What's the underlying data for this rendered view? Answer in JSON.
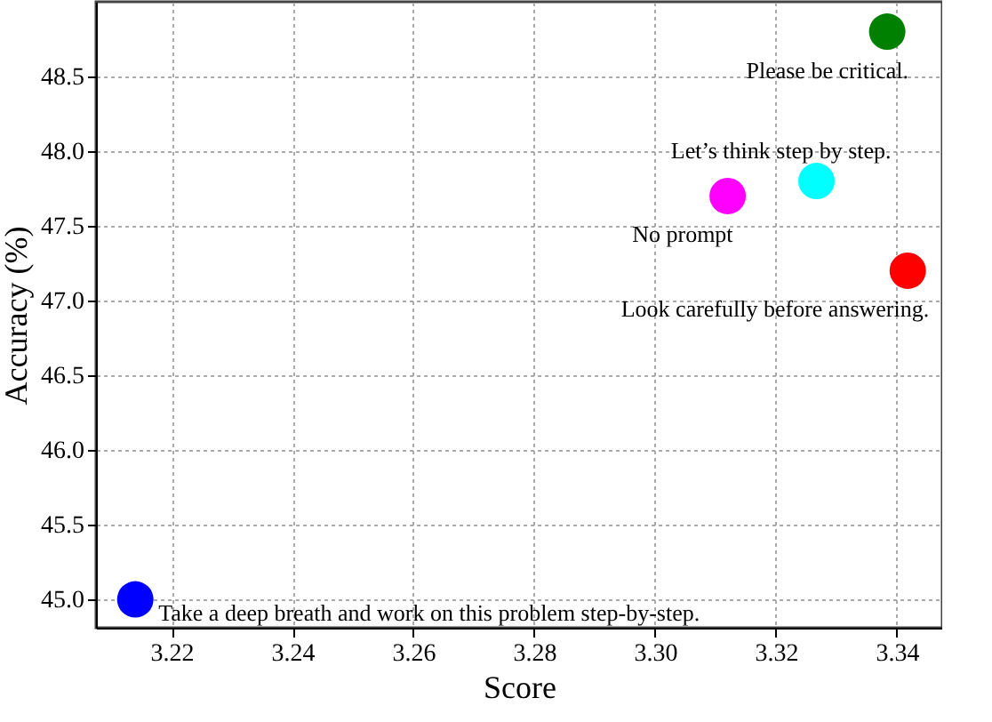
{
  "chart_data": {
    "type": "scatter",
    "xlabel": "Score",
    "ylabel": "Accuracy (%)",
    "xlim": [
      3.2075,
      3.3475
    ],
    "xticks": [
      3.22,
      3.24,
      3.26,
      3.28,
      {
        "value": 3.3,
        "label": "3.30"
      },
      3.32,
      3.34
    ],
    "ylim": [
      44.81,
      49.0
    ],
    "yticks": [
      {
        "value": 45,
        "label": "45.0"
      },
      45.5,
      {
        "value": 46,
        "label": "46.0"
      },
      46.5,
      {
        "value": 47,
        "label": "47.0"
      },
      47.5,
      {
        "value": 48,
        "label": "48.0"
      },
      48.5
    ],
    "grid": true,
    "legend": false,
    "marker": "circle",
    "series": [
      {
        "name": "Take a deep breath and work on this problem step-by-step.",
        "color": "#0000ff",
        "x": [
          3.214
        ],
        "values": [
          45.0
        ]
      },
      {
        "name": "No prompt",
        "color": "#ff00ff",
        "x": [
          3.312
        ],
        "values": [
          47.7
        ]
      },
      {
        "name": "Let’s think step by step.",
        "color": "#00ffff",
        "x": [
          3.3267
        ],
        "values": [
          47.8
        ]
      },
      {
        "name": "Please be critical.",
        "color": "#008000",
        "x": [
          3.3384
        ],
        "values": [
          48.8
        ]
      },
      {
        "name": "Look carefully before answering.",
        "color": "#ff0000",
        "x": [
          3.3418
        ],
        "values": [
          47.2
        ]
      }
    ]
  }
}
